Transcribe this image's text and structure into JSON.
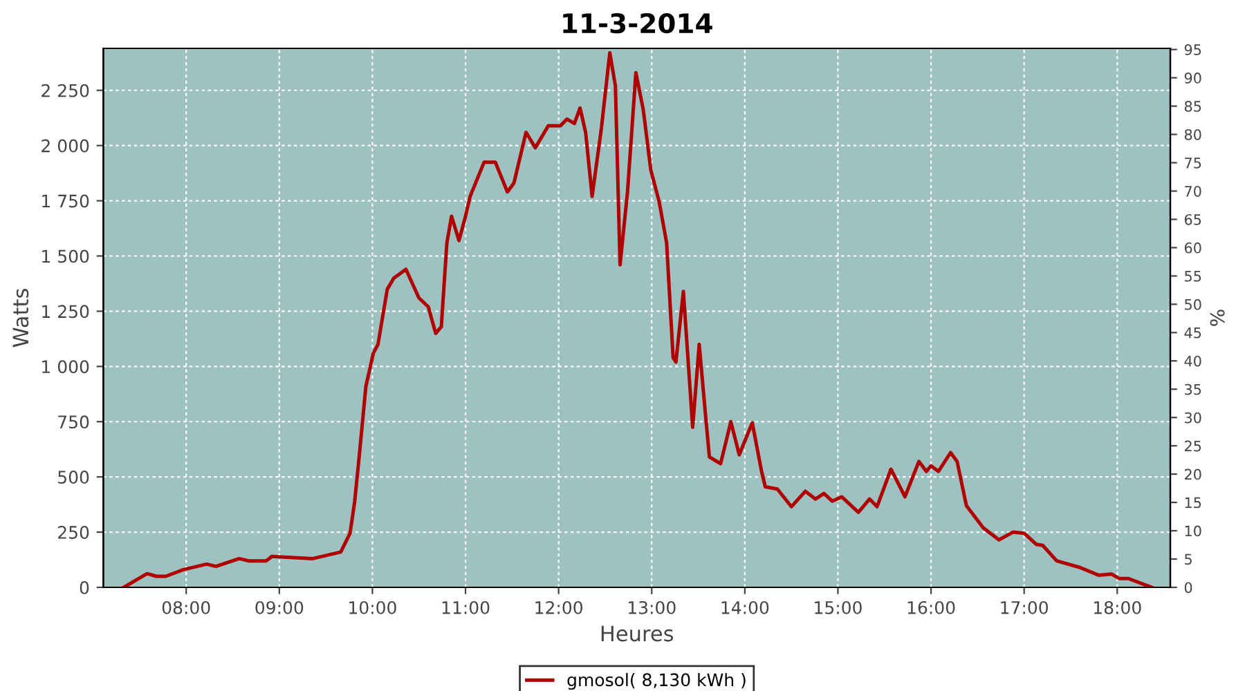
{
  "chart_data": {
    "type": "line",
    "title": "11-3-2014",
    "xlabel": "Heures",
    "ylabel": "Watts",
    "y2label": "%",
    "x": [
      7.33,
      7.58,
      7.68,
      7.78,
      7.97,
      8.22,
      8.32,
      8.57,
      8.67,
      8.86,
      8.92,
      9.36,
      9.66,
      9.76,
      9.81,
      9.86,
      9.93,
      10.01,
      10.06,
      10.16,
      10.23,
      10.36,
      10.5,
      10.6,
      10.68,
      10.74,
      10.8,
      10.85,
      10.93,
      11.0,
      11.05,
      11.2,
      11.32,
      11.45,
      11.52,
      11.65,
      11.75,
      11.89,
      12.02,
      12.09,
      12.17,
      12.23,
      12.29,
      12.36,
      12.46,
      12.55,
      12.61,
      12.66,
      12.74,
      12.83,
      12.91,
      12.99,
      13.08,
      13.16,
      13.23,
      13.26,
      13.34,
      13.41,
      13.44,
      13.51,
      13.58,
      13.62,
      13.74,
      13.85,
      13.94,
      14.08,
      14.18,
      14.22,
      14.35,
      14.5,
      14.65,
      14.76,
      14.85,
      14.94,
      15.04,
      15.22,
      15.34,
      15.42,
      15.57,
      15.72,
      15.87,
      15.95,
      16.0,
      16.08,
      16.21,
      16.28,
      16.38,
      16.56,
      16.73,
      16.88,
      17.0,
      17.13,
      17.2,
      17.35,
      17.6,
      17.8,
      17.94,
      18.02,
      18.12,
      18.37
    ],
    "series": [
      {
        "name": "gmosol( 8,130 kWh )",
        "color": "#b00000",
        "values": [
          0,
          62,
          50,
          50,
          80,
          105,
          95,
          130,
          120,
          120,
          140,
          130,
          160,
          245,
          390,
          600,
          910,
          1060,
          1100,
          1350,
          1400,
          1440,
          1310,
          1270,
          1150,
          1180,
          1560,
          1680,
          1570,
          1680,
          1770,
          1925,
          1925,
          1790,
          1830,
          2060,
          1990,
          2090,
          2090,
          2120,
          2100,
          2170,
          2060,
          1770,
          2080,
          2420,
          2270,
          1460,
          1790,
          2330,
          2160,
          1890,
          1745,
          1560,
          1040,
          1020,
          1340,
          910,
          725,
          1100,
          770,
          590,
          560,
          750,
          600,
          745,
          525,
          455,
          445,
          365,
          435,
          400,
          425,
          390,
          410,
          340,
          400,
          365,
          535,
          410,
          570,
          525,
          550,
          525,
          610,
          570,
          370,
          270,
          215,
          250,
          245,
          195,
          190,
          120,
          90,
          55,
          60,
          40,
          40,
          0
        ]
      }
    ],
    "xlim": [
      7.11,
      18.57
    ],
    "xticks": [
      {
        "value": 8,
        "label": "08:00"
      },
      {
        "value": 9,
        "label": "09:00"
      },
      {
        "value": 10,
        "label": "10:00"
      },
      {
        "value": 11,
        "label": "11:00"
      },
      {
        "value": 12,
        "label": "12:00"
      },
      {
        "value": 13,
        "label": "13:00"
      },
      {
        "value": 14,
        "label": "14:00"
      },
      {
        "value": 15,
        "label": "15:00"
      },
      {
        "value": 16,
        "label": "16:00"
      },
      {
        "value": 17,
        "label": "17:00"
      },
      {
        "value": 18,
        "label": "18:00"
      }
    ],
    "ylim": [
      0,
      2440
    ],
    "yticks": [
      0,
      250,
      500,
      750,
      {
        "value": 1000,
        "label": "1 000"
      },
      {
        "value": 1250,
        "label": "1 250"
      },
      {
        "value": 1500,
        "label": "1 500"
      },
      {
        "value": 1750,
        "label": "1 750"
      },
      {
        "value": 2000,
        "label": "2 000"
      },
      {
        "value": 2250,
        "label": "2 250"
      }
    ],
    "y2lim": [
      0,
      95.2
    ],
    "y2ticks": [
      0,
      5,
      10,
      15,
      20,
      25,
      30,
      35,
      40,
      45,
      50,
      55,
      60,
      65,
      70,
      75,
      80,
      85,
      90,
      95
    ],
    "grid": true,
    "legend": "bottom",
    "marker": "none",
    "line_style": "solid"
  }
}
